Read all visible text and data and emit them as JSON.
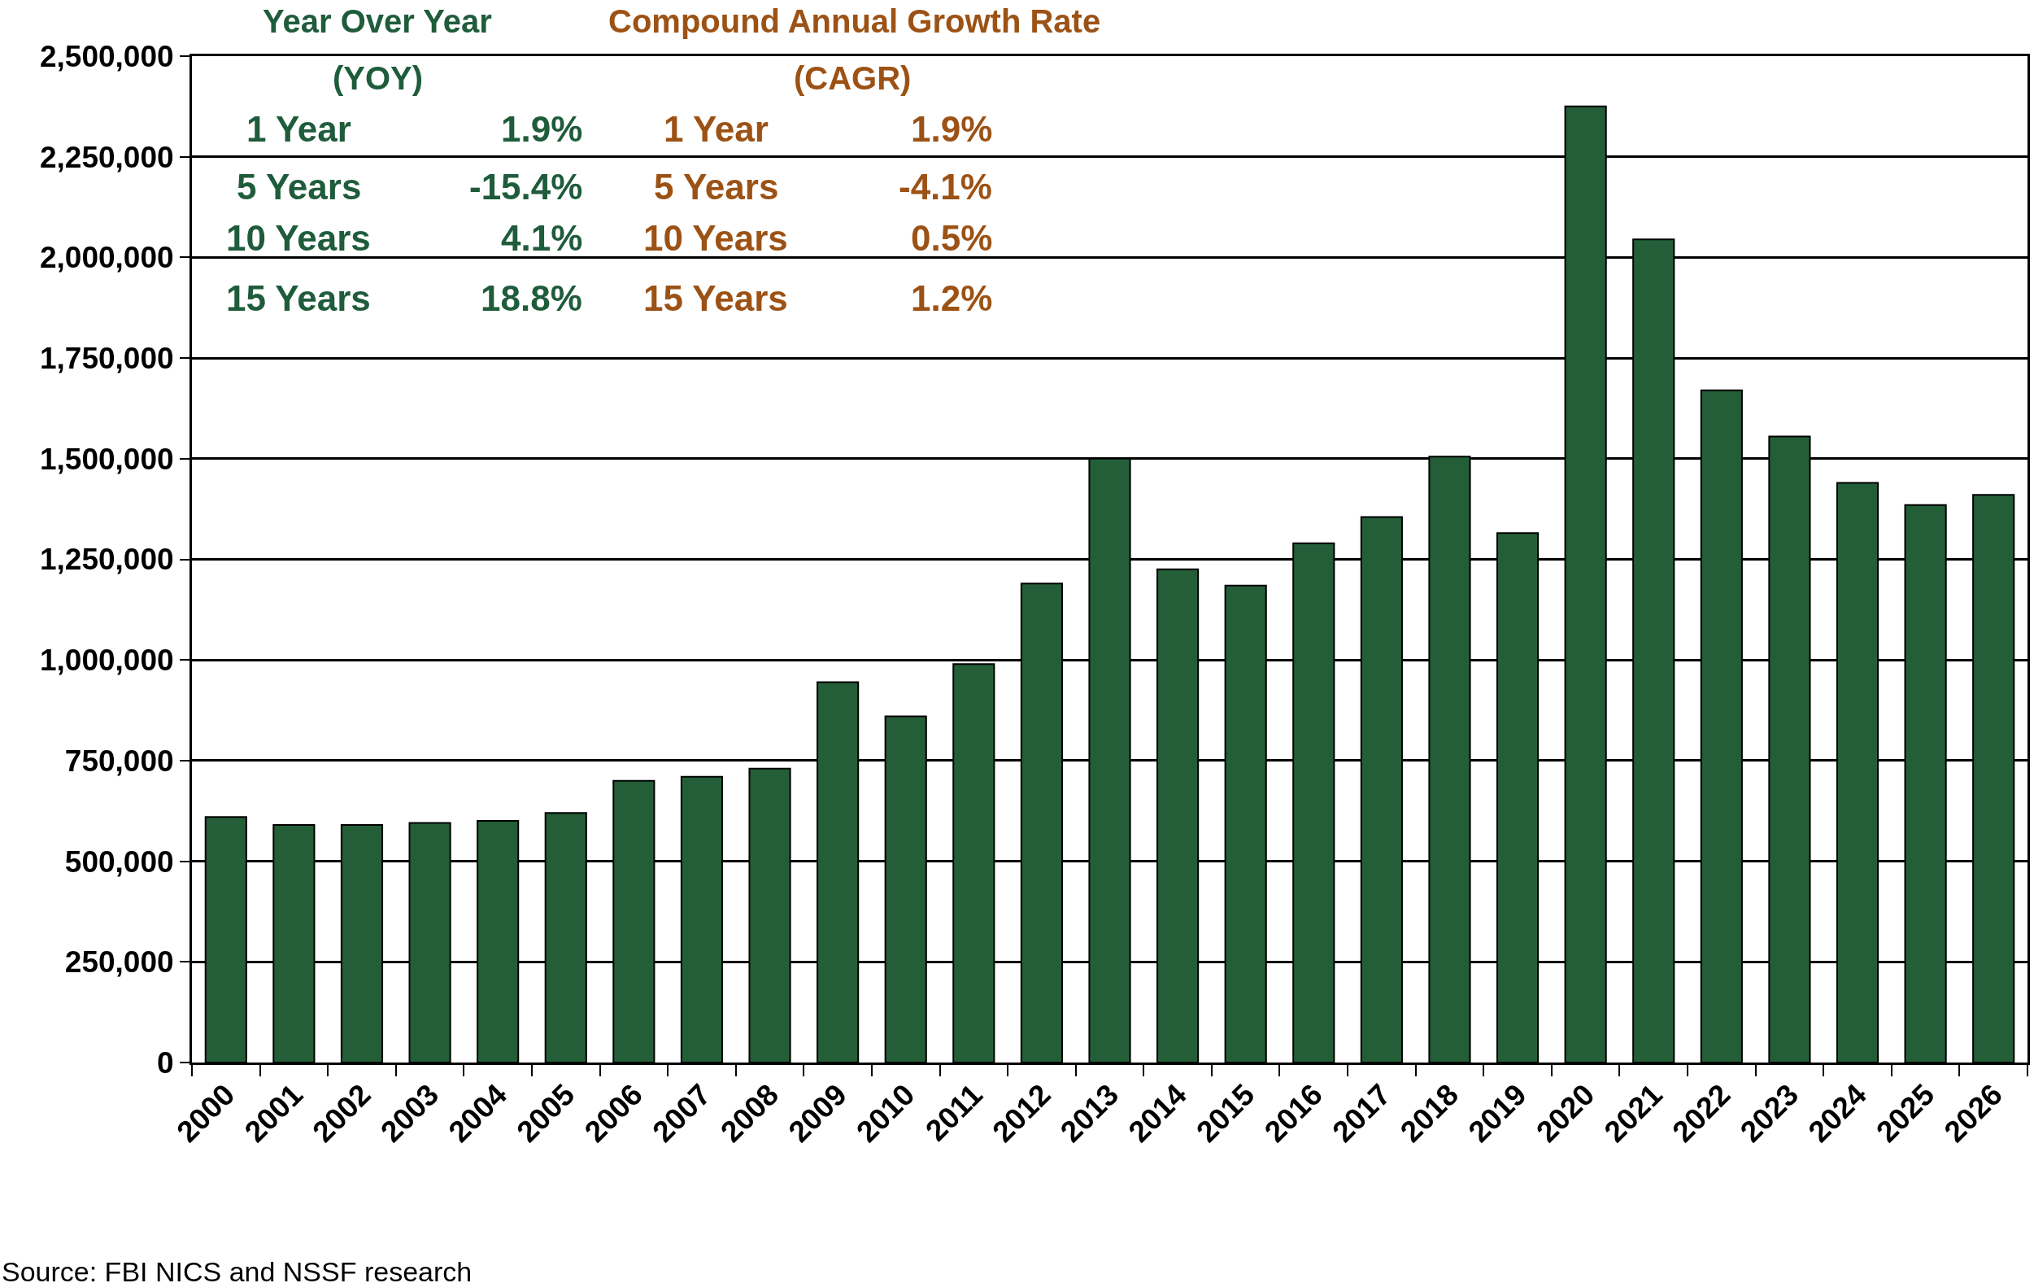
{
  "chart_data": {
    "type": "bar",
    "categories": [
      "2000",
      "2001",
      "2002",
      "2003",
      "2004",
      "2005",
      "2006",
      "2007",
      "2008",
      "2009",
      "2010",
      "2011",
      "2012",
      "2013",
      "2014",
      "2015",
      "2016",
      "2017",
      "2018",
      "2019",
      "2020",
      "2021",
      "2022",
      "2023",
      "2024",
      "2025",
      "2026"
    ],
    "values": [
      610000,
      590000,
      590000,
      595000,
      600000,
      620000,
      700000,
      710000,
      730000,
      945000,
      860000,
      990000,
      1190000,
      1500000,
      1225000,
      1185000,
      1290000,
      1355000,
      1505000,
      1315000,
      2375000,
      2045000,
      1670000,
      1555000,
      1440000,
      1385000,
      1410000
    ],
    "color": "#245e38",
    "ylim": [
      0,
      2500000
    ],
    "yticks": [
      0,
      {
        "value": 250000,
        "label": "250,000"
      },
      {
        "value": 500000,
        "label": "500,000"
      },
      {
        "value": 750000,
        "label": "750,000"
      },
      {
        "value": 1000000,
        "label": "1,000,000"
      },
      {
        "value": 1250000,
        "label": "1,250,000"
      },
      {
        "value": 1500000,
        "label": "1,500,000"
      },
      {
        "value": 1750000,
        "label": "1,750,000"
      },
      {
        "value": 2000000,
        "label": "2,000,000"
      },
      {
        "value": 2250000,
        "label": "2,250,000"
      },
      {
        "value": 2500000,
        "label": "2,500,000"
      }
    ],
    "grid": "y",
    "annotations": [
      "Year Over Year",
      "Compound Annual Growth Rate",
      "(YOY)",
      "(CAGR)",
      "1 Year",
      "1.9%",
      "1 Year",
      "1.9%",
      "5 Years",
      "-15.4%",
      "5 Years",
      "-4.1%",
      "10 Years",
      "4.1%",
      "10 Years",
      "0.5%",
      "15 Years",
      "18.8%",
      "15 Years",
      "1.2%",
      "Source: FBI NICS and NSSF research"
    ]
  }
}
